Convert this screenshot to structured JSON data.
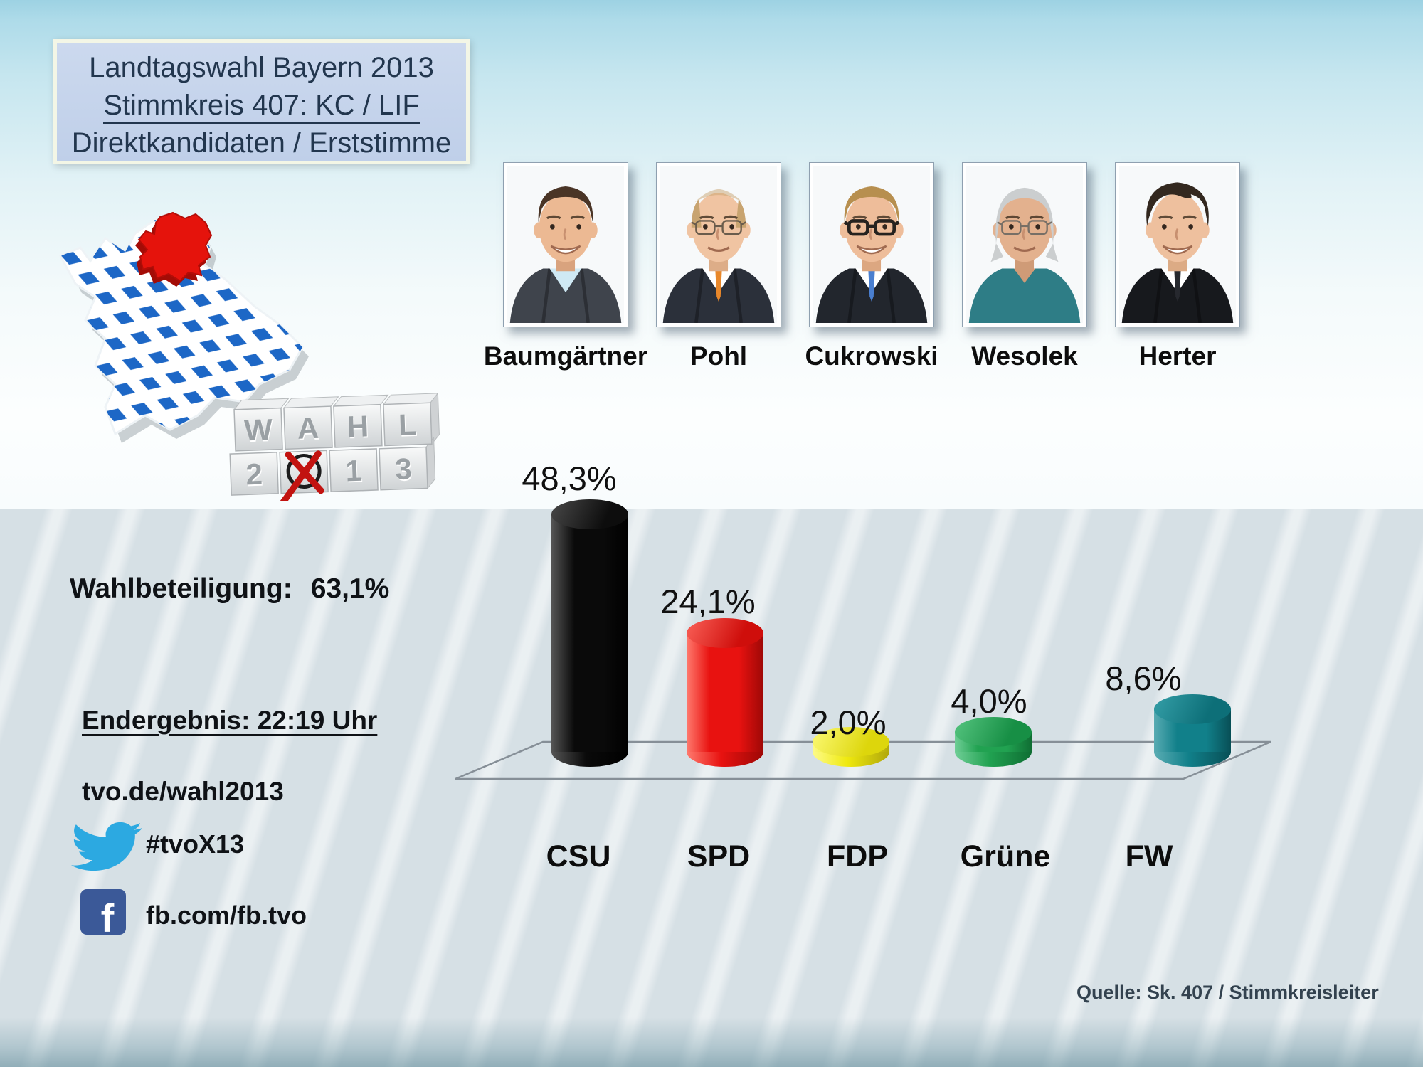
{
  "header": {
    "line1": "Landtagswahl Bayern 2013",
    "line2": "Stimmkreis 407: KC / LIF",
    "line3": "Direktkandidaten / Erststimme"
  },
  "candidates": [
    {
      "name": "Baumgärtner"
    },
    {
      "name": "Pohl"
    },
    {
      "name": "Cukrowski"
    },
    {
      "name": "Wesolek"
    },
    {
      "name": "Herter"
    }
  ],
  "info": {
    "turnout_label": "Wahlbeteiligung:",
    "turnout_value": "63,1%",
    "final_label": "Endergebnis: 22:19 Uhr",
    "website": "tvo.de/wahl2013",
    "twitter_hashtag": "#tvoX13",
    "facebook_url": "fb.com/fb.tvo"
  },
  "source": "Quelle: Sk. 407 / Stimmkreisleiter",
  "wahl_cube": {
    "row1": [
      "W",
      "A",
      "H",
      "L"
    ],
    "row2": [
      "2",
      "0",
      "1",
      "3"
    ],
    "crossed_digit": "0",
    "cross_color": "#c21310"
  },
  "colors": {
    "accent_red": "#e5130c",
    "bavaria_blue": "#1d67c6",
    "twitter_blue": "#2ca9e1",
    "facebook_blue": "#3b5998"
  },
  "chart_data": {
    "type": "bar",
    "categories": [
      "CSU",
      "SPD",
      "FDP",
      "Grüne",
      "FW"
    ],
    "values": [
      48.3,
      24.1,
      2.0,
      4.0,
      8.6
    ],
    "value_labels": [
      "48,3%",
      "24,1%",
      "2,0%",
      "4,0%",
      "8,6%"
    ],
    "title": "",
    "xlabel": "",
    "ylabel": "",
    "ylim": [
      0,
      50
    ],
    "grid": false,
    "legend": false,
    "bars": [
      {
        "party": "CSU",
        "value": 48.3,
        "color": "#0a0a0a",
        "light": "#555555",
        "dark": "#000000",
        "cap_light": "#404040",
        "cap_dark": "#0d0d0d"
      },
      {
        "party": "SPD",
        "value": 24.1,
        "color": "#e81210",
        "light": "#ff7a6e",
        "dark": "#9e0806",
        "cap_light": "#f4554d",
        "cap_dark": "#cf0e0b"
      },
      {
        "party": "FDP",
        "value": 2.0,
        "color": "#efe90f",
        "light": "#fdfb8a",
        "dark": "#b0a70a",
        "cap_light": "#f8f566",
        "cap_dark": "#ddd60c"
      },
      {
        "party": "Grüne",
        "value": 4.0,
        "color": "#21a251",
        "light": "#6fce96",
        "dark": "#0f6e33",
        "cap_light": "#4cbd77",
        "cap_dark": "#178f45"
      },
      {
        "party": "FW",
        "value": 8.6,
        "color": "#11808a",
        "light": "#5aacb3",
        "dark": "#084f56",
        "cap_light": "#2f98a1",
        "cap_dark": "#0d6f78"
      }
    ]
  }
}
